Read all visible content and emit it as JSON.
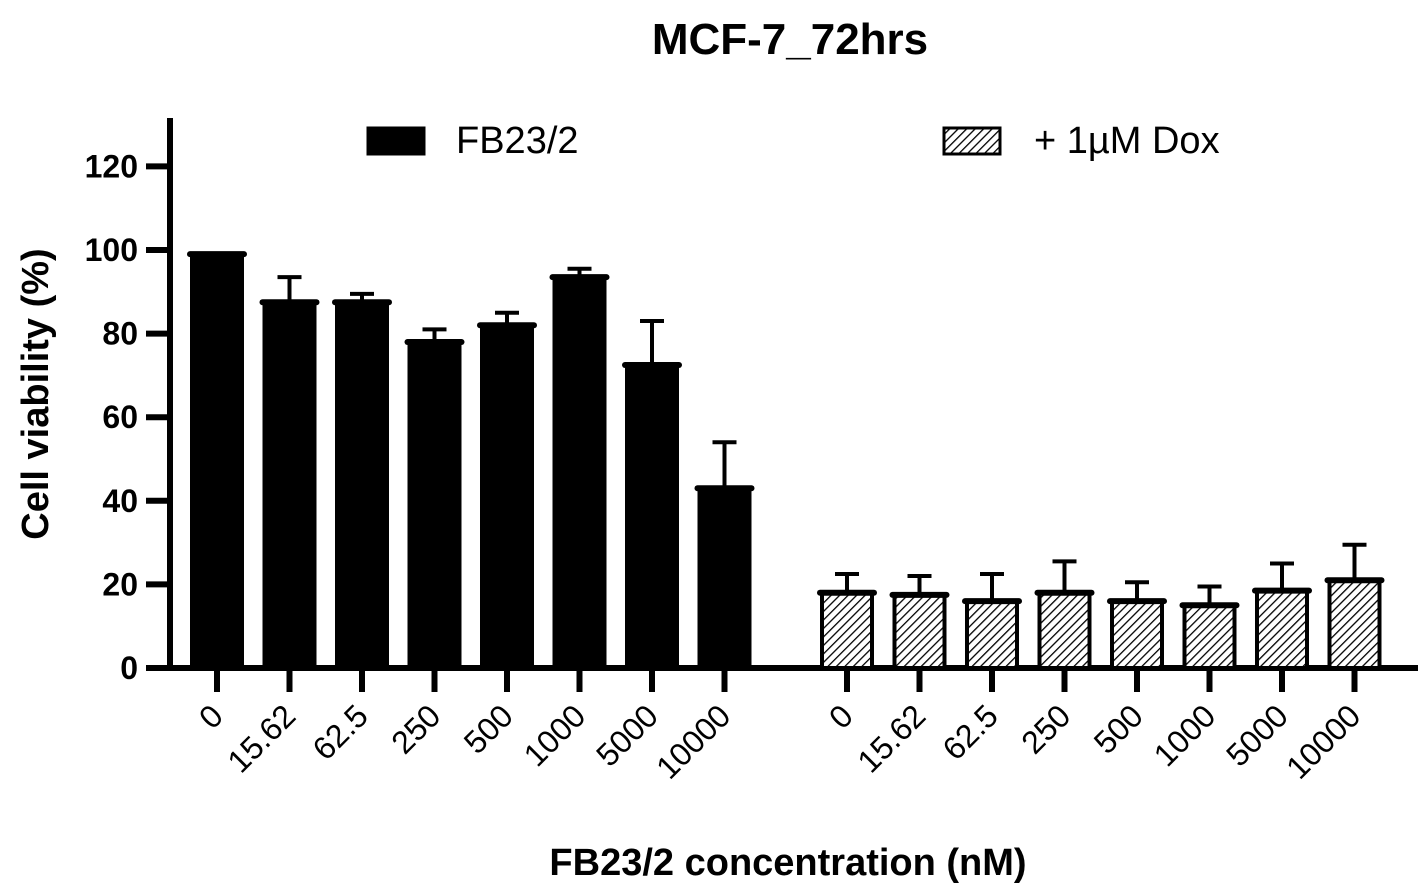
{
  "chart_data": {
    "type": "bar",
    "title": "MCF-7_72hrs",
    "xlabel": "FB23/2 concentration (nM)",
    "ylabel": "Cell viability (%)",
    "ylim": [
      0,
      130
    ],
    "yticks": [
      "0",
      "20",
      "40",
      "60",
      "80",
      "100",
      "120"
    ],
    "categories": [
      "0",
      "15.62",
      "62.5",
      "250",
      "500",
      "1000",
      "5000",
      "10000"
    ],
    "series": [
      {
        "name": "FB23/2",
        "color": "#000000",
        "pattern": "solid",
        "values": [
          99,
          87.5,
          87.5,
          78,
          82,
          93.5,
          72.5,
          43
        ],
        "errors": [
          0,
          6,
          2,
          3,
          3,
          2,
          10.5,
          11
        ]
      },
      {
        "name": "+ 1µM Dox",
        "color": "#000000",
        "pattern": "hatched",
        "values": [
          18,
          17.5,
          16,
          18,
          16,
          15,
          18.5,
          21
        ],
        "errors": [
          4.5,
          4.5,
          6.5,
          7.5,
          4.5,
          4.5,
          6.5,
          8.5
        ]
      }
    ],
    "grid": false,
    "legend_position": "top"
  }
}
